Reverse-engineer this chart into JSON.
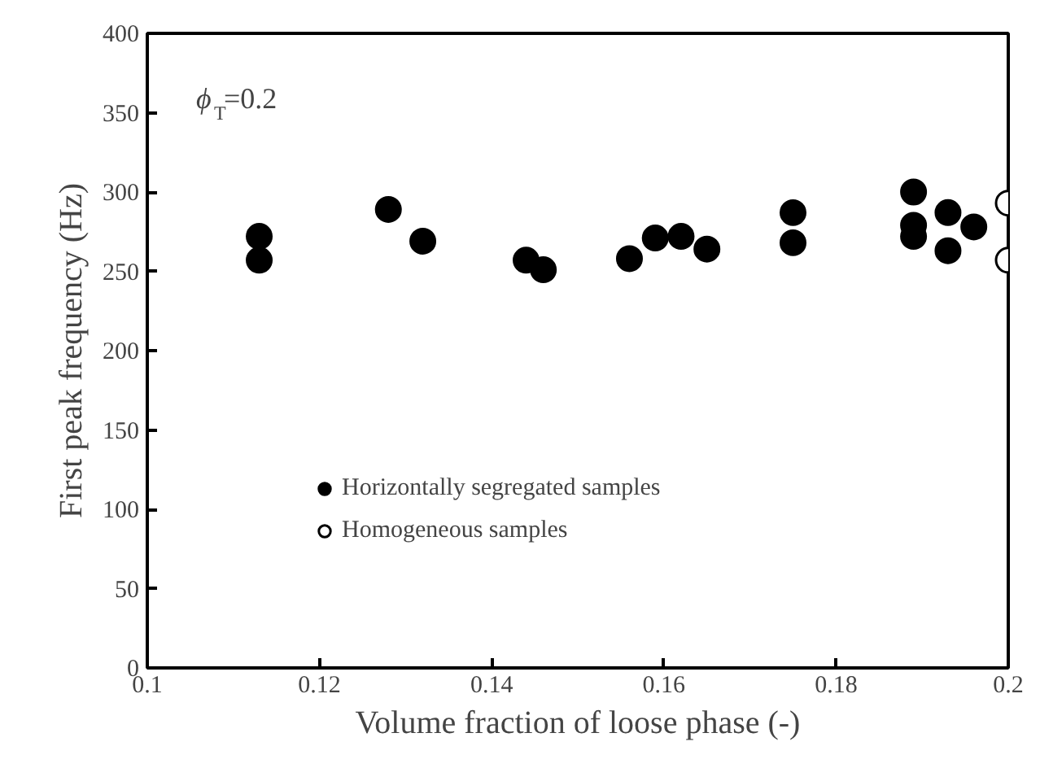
{
  "chart_data": {
    "type": "scatter",
    "xlabel": "Volume fraction of loose phase (-)",
    "ylabel": "First peak frequency (Hz)",
    "annotations": [
      "ϕ$_{T}$=0.2"
    ],
    "xlim": [
      0.1,
      0.2
    ],
    "xticks": [
      0.1,
      0.12,
      0.14,
      0.16,
      0.18,
      0.2
    ],
    "ylim": [
      0,
      400
    ],
    "yticks": [
      0,
      50,
      100,
      150,
      200,
      250,
      300,
      350,
      400
    ],
    "grid": false,
    "legend": "bottom left",
    "marker": "circle",
    "series": [
      {
        "name": "Horizontally segregated samples",
        "color": "#000000",
        "x": [
          0.113,
          0.113,
          0.128,
          0.132,
          0.144,
          0.146,
          0.156,
          0.159,
          0.162,
          0.165,
          0.175,
          0.175,
          0.189,
          0.189,
          0.189,
          0.193,
          0.193,
          0.196
        ],
        "values": [
          272,
          257,
          289,
          269,
          257,
          251,
          258,
          271,
          272,
          264,
          287,
          268,
          300,
          279,
          272,
          287,
          263,
          278
        ]
      },
      {
        "name": "Homogeneous samples",
        "color": "#ffffff",
        "x": [
          0.2,
          0.2
        ],
        "values": [
          293,
          257
        ]
      }
    ]
  }
}
